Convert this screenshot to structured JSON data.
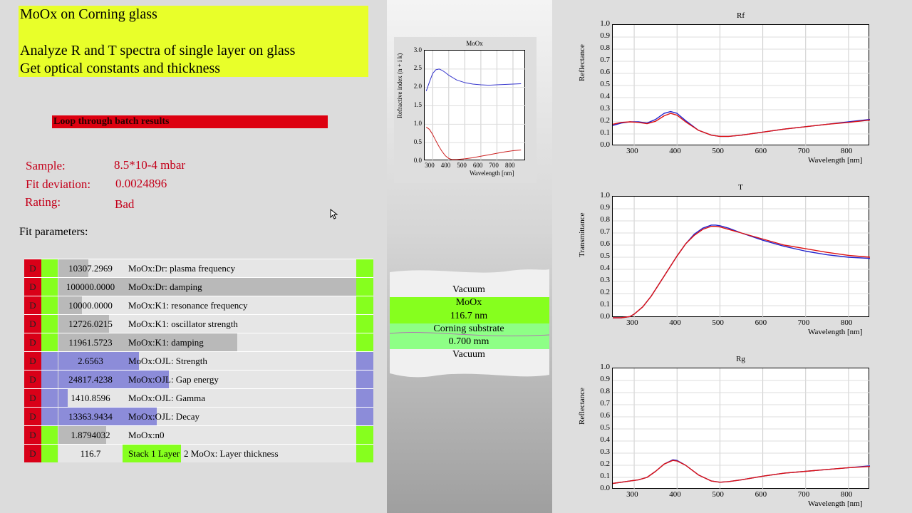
{
  "title": {
    "line1": "MoOx on Corning glass",
    "line2": "Analyze R and T spectra of single layer on glass",
    "line3": "Get optical constants and thickness"
  },
  "batch_button": "Loop through batch results",
  "info": {
    "sample_label": "Sample:",
    "sample_value": "8.5*10-4 mbar",
    "deviation_label": "Fit deviation:",
    "deviation_value": "0.0024896",
    "rating_label": "Rating:",
    "rating_value": "Bad"
  },
  "fit_label": "Fit parameters:",
  "params": [
    {
      "d": "D",
      "value": "10307.2969",
      "name": "MoOx:Dr: plasma frequency",
      "fill": 0.1,
      "color": "#b9b9b9",
      "side": "#86ff1e"
    },
    {
      "d": "D",
      "value": "100000.0000",
      "name": "MoOx:Dr: damping",
      "fill": 1.0,
      "color": "#b9b9b9",
      "side": "#86ff1e"
    },
    {
      "d": "D",
      "value": "10000.0000",
      "name": "MoOx:K1: resonance frequency",
      "fill": 0.08,
      "color": "#b9b9b9",
      "side": "#86ff1e"
    },
    {
      "d": "D",
      "value": "12726.0215",
      "name": "MoOx:K1: oscillator strength",
      "fill": 0.17,
      "color": "#b9b9b9",
      "side": "#86ff1e"
    },
    {
      "d": "D",
      "value": "11961.5723",
      "name": "MoOx:K1: damping",
      "fill": 0.6,
      "color": "#b9b9b9",
      "side": "#86ff1e"
    },
    {
      "d": "D",
      "value": "2.6563",
      "name": "MoOx:OJL: Strength",
      "fill": 0.27,
      "color": "#8c8cd9",
      "side": "#8c8cd9"
    },
    {
      "d": "D",
      "value": "24817.4238",
      "name": "MoOx:OJL: Gap energy",
      "fill": 0.37,
      "color": "#8c8cd9",
      "side": "#8c8cd9"
    },
    {
      "d": "D",
      "value": "1410.8596",
      "name": "MoOx:OJL: Gamma",
      "fill": 0.03,
      "color": "#8c8cd9",
      "side": "#8c8cd9"
    },
    {
      "d": "D",
      "value": "13363.9434",
      "name": "MoOx:OJL: Decay",
      "fill": 0.33,
      "color": "#8c8cd9",
      "side": "#8c8cd9"
    },
    {
      "d": "D",
      "value": "1.8794032",
      "name": "MoOx:n0",
      "fill": 0.16,
      "color": "#b9b9b9",
      "side": "#86ff1e"
    },
    {
      "d": "D",
      "value": "116.7",
      "name": "2 MoOx: Layer thickness",
      "stack": "Stack 1 Layer",
      "fill": 0.0,
      "color": "#86ff1e",
      "side": "#86ff1e"
    }
  ],
  "stack": {
    "top": "Vacuum",
    "layer_name": "MoOx",
    "layer_thickness": "116.7 nm",
    "substrate_name": "Corning substrate",
    "substrate_thickness": "0.700 mm",
    "bottom": "Vacuum"
  },
  "chart_data": [
    {
      "type": "line",
      "title": "MoOx",
      "xlabel": "Wavelength [nm]",
      "ylabel": "Refractive index (n + i k)",
      "xlim": [
        250,
        880
      ],
      "ylim": [
        0,
        3.0
      ],
      "xticks": [
        300,
        400,
        500,
        600,
        700,
        800
      ],
      "yticks": [
        0,
        0.5,
        1.0,
        1.5,
        2.0,
        2.5,
        3.0
      ],
      "ytick_labels": [
        "0.0",
        "0.5",
        "1.0",
        "1.5",
        "2.0",
        "2.5",
        "3.0"
      ],
      "series": [
        {
          "color": "#3333cc",
          "x": [
            260,
            280,
            300,
            320,
            340,
            360,
            380,
            400,
            450,
            500,
            550,
            600,
            650,
            700,
            750,
            800,
            850
          ],
          "y": [
            1.9,
            2.15,
            2.38,
            2.48,
            2.5,
            2.46,
            2.4,
            2.33,
            2.2,
            2.13,
            2.09,
            2.07,
            2.06,
            2.07,
            2.08,
            2.09,
            2.1
          ]
        },
        {
          "color": "#cc2222",
          "x": [
            260,
            280,
            300,
            320,
            340,
            360,
            380,
            400,
            420,
            450,
            500,
            550,
            600,
            650,
            700,
            750,
            800,
            850
          ],
          "y": [
            0.92,
            0.86,
            0.72,
            0.55,
            0.39,
            0.25,
            0.14,
            0.07,
            0.04,
            0.04,
            0.06,
            0.09,
            0.13,
            0.17,
            0.21,
            0.25,
            0.28,
            0.3
          ]
        }
      ]
    },
    {
      "type": "line",
      "title": "Rf",
      "xlabel": "Wavelength [nm]",
      "ylabel": "Reflectance",
      "xlim": [
        250,
        850
      ],
      "ylim": [
        0,
        1.0
      ],
      "xticks": [
        300,
        400,
        500,
        600,
        700,
        800
      ],
      "yticks": [
        0,
        0.1,
        0.2,
        0.3,
        0.4,
        0.5,
        0.6,
        0.7,
        0.8,
        0.9,
        1.0
      ],
      "ytick_labels": [
        "0.0",
        "0.1",
        "0.2",
        "0.3",
        "0.4",
        "0.5",
        "0.6",
        "0.7",
        "0.8",
        "0.9",
        "1.0"
      ],
      "series": [
        {
          "color": "#2222cc",
          "x": [
            250,
            270,
            290,
            310,
            330,
            350,
            370,
            385,
            400,
            420,
            450,
            480,
            500,
            520,
            550,
            600,
            650,
            700,
            750,
            800,
            850
          ],
          "y": [
            0.17,
            0.19,
            0.2,
            0.2,
            0.19,
            0.22,
            0.27,
            0.285,
            0.27,
            0.21,
            0.13,
            0.09,
            0.08,
            0.08,
            0.09,
            0.115,
            0.14,
            0.16,
            0.18,
            0.2,
            0.22
          ]
        },
        {
          "color": "#dd1111",
          "x": [
            250,
            270,
            290,
            310,
            330,
            350,
            370,
            385,
            400,
            420,
            450,
            480,
            500,
            520,
            550,
            600,
            650,
            700,
            750,
            800,
            850
          ],
          "y": [
            0.18,
            0.195,
            0.2,
            0.195,
            0.185,
            0.205,
            0.25,
            0.27,
            0.255,
            0.2,
            0.13,
            0.09,
            0.08,
            0.08,
            0.09,
            0.115,
            0.14,
            0.16,
            0.18,
            0.195,
            0.215
          ]
        }
      ]
    },
    {
      "type": "line",
      "title": "T",
      "xlabel": "Wavelength [nm]",
      "ylabel": "Transmittance",
      "xlim": [
        250,
        850
      ],
      "ylim": [
        0,
        1.0
      ],
      "xticks": [
        300,
        400,
        500,
        600,
        700,
        800
      ],
      "yticks": [
        0,
        0.1,
        0.2,
        0.3,
        0.4,
        0.5,
        0.6,
        0.7,
        0.8,
        0.9,
        1.0
      ],
      "ytick_labels": [
        "0.0",
        "0.1",
        "0.2",
        "0.3",
        "0.4",
        "0.5",
        "0.6",
        "0.7",
        "0.8",
        "0.9",
        "1.0"
      ],
      "series": [
        {
          "color": "#2222cc",
          "x": [
            250,
            270,
            290,
            300,
            320,
            340,
            360,
            380,
            400,
            420,
            440,
            460,
            480,
            490,
            500,
            520,
            550,
            600,
            650,
            700,
            750,
            800,
            850
          ],
          "y": [
            0,
            0.0,
            0.01,
            0.03,
            0.09,
            0.18,
            0.29,
            0.4,
            0.51,
            0.61,
            0.69,
            0.74,
            0.765,
            0.765,
            0.76,
            0.74,
            0.7,
            0.64,
            0.59,
            0.55,
            0.52,
            0.5,
            0.49
          ]
        },
        {
          "color": "#dd1111",
          "x": [
            250,
            270,
            290,
            300,
            320,
            340,
            360,
            380,
            400,
            420,
            440,
            460,
            480,
            490,
            500,
            520,
            550,
            600,
            650,
            700,
            750,
            800,
            850
          ],
          "y": [
            0,
            0.0,
            0.01,
            0.03,
            0.09,
            0.18,
            0.29,
            0.4,
            0.51,
            0.61,
            0.68,
            0.73,
            0.755,
            0.755,
            0.75,
            0.73,
            0.7,
            0.65,
            0.6,
            0.57,
            0.54,
            0.515,
            0.5
          ]
        }
      ]
    },
    {
      "type": "line",
      "title": "Rg",
      "xlabel": "Wavelength [nm]",
      "ylabel": "Reflectance",
      "xlim": [
        250,
        850
      ],
      "ylim": [
        0,
        1.0
      ],
      "xticks": [
        300,
        400,
        500,
        600,
        700,
        800
      ],
      "yticks": [
        0,
        0.1,
        0.2,
        0.3,
        0.4,
        0.5,
        0.6,
        0.7,
        0.8,
        0.9,
        1.0
      ],
      "ytick_labels": [
        "0.0",
        "0.1",
        "0.2",
        "0.3",
        "0.4",
        "0.5",
        "0.6",
        "0.7",
        "0.8",
        "0.9",
        "1.0"
      ],
      "series": [
        {
          "color": "#2222cc",
          "x": [
            250,
            270,
            290,
            310,
            330,
            350,
            370,
            390,
            400,
            420,
            450,
            480,
            500,
            520,
            550,
            600,
            650,
            700,
            750,
            800,
            850
          ],
          "y": [
            0.05,
            0.06,
            0.07,
            0.08,
            0.1,
            0.15,
            0.21,
            0.245,
            0.24,
            0.2,
            0.12,
            0.07,
            0.06,
            0.065,
            0.08,
            0.11,
            0.135,
            0.15,
            0.165,
            0.18,
            0.195
          ]
        },
        {
          "color": "#dd1111",
          "x": [
            250,
            270,
            290,
            310,
            330,
            350,
            370,
            390,
            400,
            420,
            450,
            480,
            500,
            520,
            550,
            600,
            650,
            700,
            750,
            800,
            850
          ],
          "y": [
            0.05,
            0.06,
            0.07,
            0.08,
            0.1,
            0.15,
            0.21,
            0.24,
            0.235,
            0.2,
            0.12,
            0.07,
            0.06,
            0.065,
            0.08,
            0.11,
            0.135,
            0.15,
            0.165,
            0.18,
            0.19
          ]
        }
      ]
    }
  ]
}
